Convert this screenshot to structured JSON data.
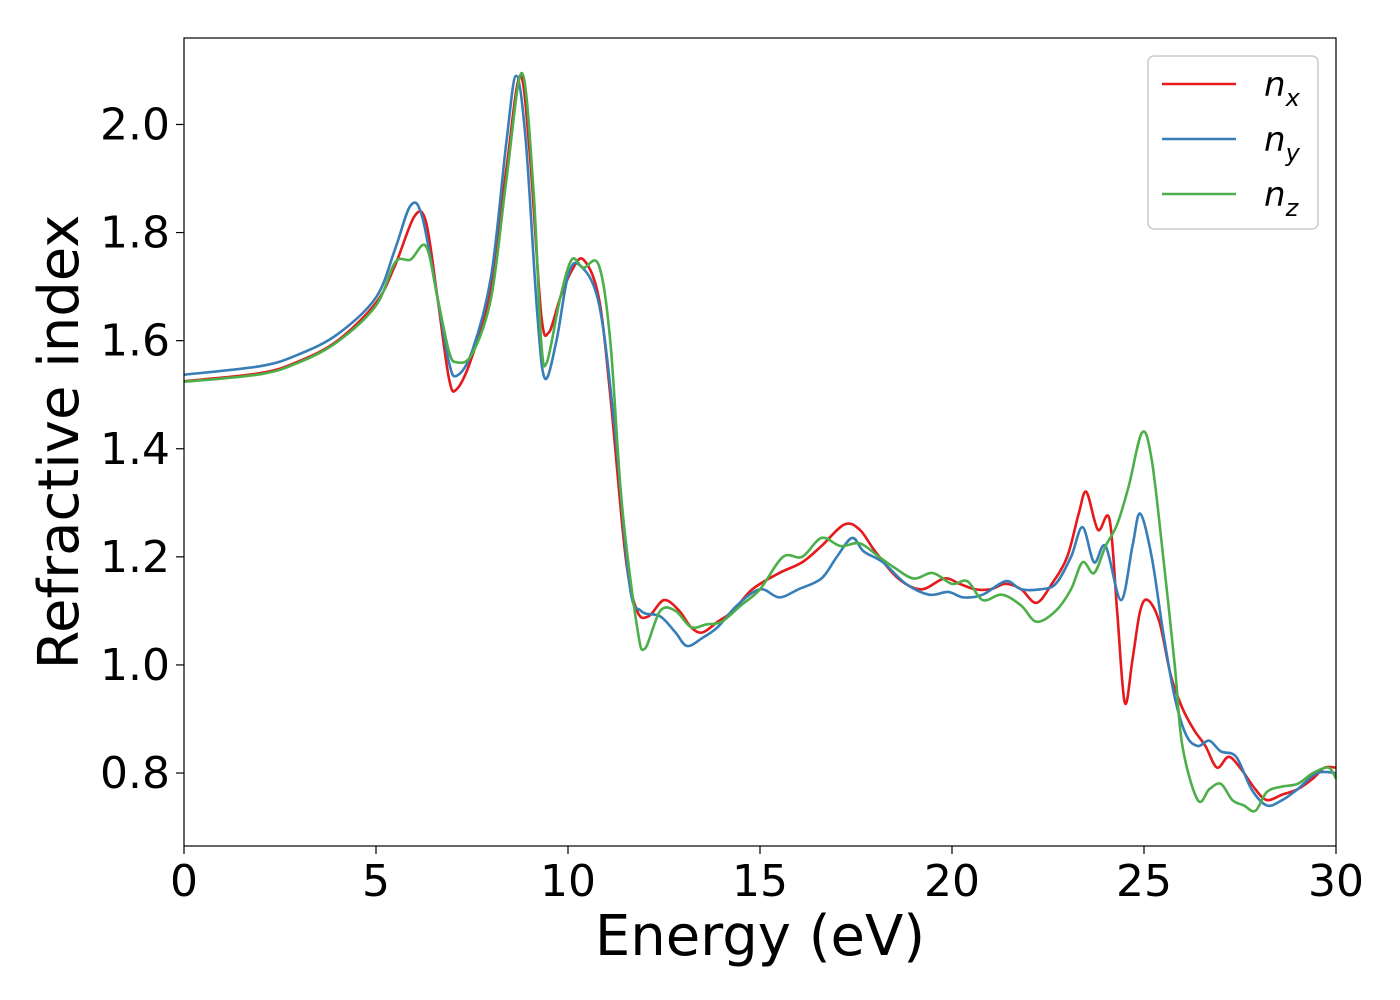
{
  "chart_data": {
    "type": "line",
    "xlabel": "Energy (eV)",
    "ylabel": "Refractive index",
    "xlim": [
      0,
      30
    ],
    "ylim": [
      0.665,
      2.16
    ],
    "xticks": [
      0,
      5,
      10,
      15,
      20,
      25,
      30
    ],
    "xtick_labels": [
      "0",
      "5",
      "10",
      "15",
      "20",
      "25",
      "30"
    ],
    "yticks": [
      0.8,
      1.0,
      1.2,
      1.4,
      1.6,
      1.8,
      2.0
    ],
    "ytick_labels": [
      "0.8",
      "1.0",
      "1.2",
      "1.4",
      "1.6",
      "1.8",
      "2.0"
    ],
    "grid": false,
    "legend_position": "top-right",
    "series": [
      {
        "name": "n_x",
        "label_base": "n",
        "label_sub": "x",
        "color": "#e41a1c",
        "points": [
          [
            0,
            1.525
          ],
          [
            2,
            1.54
          ],
          [
            3,
            1.562
          ],
          [
            4,
            1.6
          ],
          [
            5,
            1.67
          ],
          [
            5.5,
            1.74
          ],
          [
            6,
            1.83
          ],
          [
            6.3,
            1.82
          ],
          [
            6.6,
            1.68
          ],
          [
            6.9,
            1.53
          ],
          [
            7.1,
            1.51
          ],
          [
            7.5,
            1.57
          ],
          [
            8,
            1.7
          ],
          [
            8.4,
            1.92
          ],
          [
            8.75,
            2.09
          ],
          [
            9.0,
            1.95
          ],
          [
            9.3,
            1.65
          ],
          [
            9.5,
            1.615
          ],
          [
            9.8,
            1.68
          ],
          [
            10.1,
            1.73
          ],
          [
            10.4,
            1.75
          ],
          [
            10.8,
            1.68
          ],
          [
            11.1,
            1.5
          ],
          [
            11.5,
            1.2
          ],
          [
            11.8,
            1.1
          ],
          [
            12.1,
            1.09
          ],
          [
            12.5,
            1.12
          ],
          [
            12.9,
            1.1
          ],
          [
            13.2,
            1.07
          ],
          [
            13.5,
            1.06
          ],
          [
            13.9,
            1.08
          ],
          [
            14.3,
            1.1
          ],
          [
            14.8,
            1.14
          ],
          [
            15.5,
            1.17
          ],
          [
            16.1,
            1.19
          ],
          [
            16.6,
            1.22
          ],
          [
            17.2,
            1.26
          ],
          [
            17.6,
            1.25
          ],
          [
            18.0,
            1.21
          ],
          [
            18.6,
            1.16
          ],
          [
            19.2,
            1.14
          ],
          [
            19.8,
            1.16
          ],
          [
            20.2,
            1.15
          ],
          [
            20.6,
            1.14
          ],
          [
            21.0,
            1.14
          ],
          [
            21.4,
            1.15
          ],
          [
            21.8,
            1.14
          ],
          [
            22.2,
            1.115
          ],
          [
            22.6,
            1.15
          ],
          [
            23.0,
            1.2
          ],
          [
            23.3,
            1.28
          ],
          [
            23.5,
            1.32
          ],
          [
            23.8,
            1.25
          ],
          [
            24.1,
            1.27
          ],
          [
            24.3,
            1.1
          ],
          [
            24.5,
            0.93
          ],
          [
            24.7,
            1.01
          ],
          [
            24.9,
            1.1
          ],
          [
            25.1,
            1.12
          ],
          [
            25.4,
            1.08
          ],
          [
            25.7,
            0.98
          ],
          [
            26.0,
            0.92
          ],
          [
            26.3,
            0.88
          ],
          [
            26.6,
            0.85
          ],
          [
            26.9,
            0.81
          ],
          [
            27.2,
            0.83
          ],
          [
            27.5,
            0.81
          ],
          [
            27.9,
            0.77
          ],
          [
            28.2,
            0.75
          ],
          [
            28.6,
            0.76
          ],
          [
            29.0,
            0.77
          ],
          [
            29.4,
            0.79
          ],
          [
            29.7,
            0.81
          ],
          [
            30.0,
            0.81
          ]
        ]
      },
      {
        "name": "n_y",
        "label_base": "n",
        "label_sub": "y",
        "color": "#377eb8",
        "points": [
          [
            0,
            1.537
          ],
          [
            2,
            1.553
          ],
          [
            3,
            1.575
          ],
          [
            4,
            1.612
          ],
          [
            5,
            1.68
          ],
          [
            5.5,
            1.77
          ],
          [
            5.9,
            1.85
          ],
          [
            6.2,
            1.83
          ],
          [
            6.6,
            1.68
          ],
          [
            6.9,
            1.56
          ],
          [
            7.1,
            1.535
          ],
          [
            7.5,
            1.58
          ],
          [
            8,
            1.72
          ],
          [
            8.4,
            1.97
          ],
          [
            8.65,
            2.09
          ],
          [
            8.9,
            1.97
          ],
          [
            9.2,
            1.65
          ],
          [
            9.4,
            1.53
          ],
          [
            9.7,
            1.6
          ],
          [
            10.0,
            1.72
          ],
          [
            10.3,
            1.74
          ],
          [
            10.8,
            1.67
          ],
          [
            11.2,
            1.45
          ],
          [
            11.6,
            1.15
          ],
          [
            11.9,
            1.1
          ],
          [
            12.4,
            1.09
          ],
          [
            12.8,
            1.06
          ],
          [
            13.1,
            1.035
          ],
          [
            13.5,
            1.05
          ],
          [
            13.9,
            1.07
          ],
          [
            14.4,
            1.11
          ],
          [
            15.0,
            1.14
          ],
          [
            15.5,
            1.125
          ],
          [
            16.0,
            1.14
          ],
          [
            16.6,
            1.16
          ],
          [
            17.0,
            1.2
          ],
          [
            17.4,
            1.235
          ],
          [
            17.7,
            1.21
          ],
          [
            18.2,
            1.19
          ],
          [
            18.8,
            1.15
          ],
          [
            19.4,
            1.13
          ],
          [
            19.9,
            1.135
          ],
          [
            20.3,
            1.125
          ],
          [
            20.8,
            1.13
          ],
          [
            21.4,
            1.155
          ],
          [
            21.8,
            1.14
          ],
          [
            22.3,
            1.14
          ],
          [
            22.7,
            1.15
          ],
          [
            23.1,
            1.2
          ],
          [
            23.4,
            1.255
          ],
          [
            23.7,
            1.19
          ],
          [
            24.0,
            1.22
          ],
          [
            24.4,
            1.12
          ],
          [
            24.7,
            1.22
          ],
          [
            24.9,
            1.28
          ],
          [
            25.2,
            1.2
          ],
          [
            25.5,
            1.06
          ],
          [
            25.8,
            0.94
          ],
          [
            26.1,
            0.87
          ],
          [
            26.4,
            0.85
          ],
          [
            26.7,
            0.86
          ],
          [
            27.0,
            0.84
          ],
          [
            27.4,
            0.83
          ],
          [
            27.8,
            0.77
          ],
          [
            28.2,
            0.74
          ],
          [
            28.6,
            0.75
          ],
          [
            29.0,
            0.77
          ],
          [
            29.5,
            0.8
          ],
          [
            30.0,
            0.8
          ]
        ]
      },
      {
        "name": "n_z",
        "label_base": "n",
        "label_sub": "z",
        "color": "#4daf4a",
        "points": [
          [
            0,
            1.524
          ],
          [
            2,
            1.538
          ],
          [
            3,
            1.56
          ],
          [
            4,
            1.598
          ],
          [
            5,
            1.665
          ],
          [
            5.5,
            1.745
          ],
          [
            5.9,
            1.75
          ],
          [
            6.3,
            1.775
          ],
          [
            6.6,
            1.68
          ],
          [
            6.9,
            1.58
          ],
          [
            7.1,
            1.56
          ],
          [
            7.5,
            1.575
          ],
          [
            8,
            1.68
          ],
          [
            8.4,
            1.9
          ],
          [
            8.8,
            2.095
          ],
          [
            9.1,
            1.88
          ],
          [
            9.3,
            1.6
          ],
          [
            9.45,
            1.56
          ],
          [
            9.8,
            1.68
          ],
          [
            10.1,
            1.75
          ],
          [
            10.4,
            1.735
          ],
          [
            10.8,
            1.74
          ],
          [
            11.1,
            1.6
          ],
          [
            11.4,
            1.3
          ],
          [
            11.8,
            1.07
          ],
          [
            12.0,
            1.03
          ],
          [
            12.4,
            1.1
          ],
          [
            12.8,
            1.1
          ],
          [
            13.2,
            1.07
          ],
          [
            13.6,
            1.075
          ],
          [
            14.0,
            1.08
          ],
          [
            14.5,
            1.11
          ],
          [
            15.0,
            1.14
          ],
          [
            15.6,
            1.2
          ],
          [
            16.1,
            1.2
          ],
          [
            16.6,
            1.235
          ],
          [
            17.1,
            1.22
          ],
          [
            17.6,
            1.225
          ],
          [
            18.1,
            1.2
          ],
          [
            18.5,
            1.18
          ],
          [
            19.0,
            1.16
          ],
          [
            19.5,
            1.17
          ],
          [
            20.0,
            1.15
          ],
          [
            20.4,
            1.155
          ],
          [
            20.8,
            1.12
          ],
          [
            21.3,
            1.13
          ],
          [
            21.8,
            1.11
          ],
          [
            22.2,
            1.08
          ],
          [
            22.7,
            1.1
          ],
          [
            23.1,
            1.14
          ],
          [
            23.4,
            1.19
          ],
          [
            23.7,
            1.17
          ],
          [
            24.0,
            1.22
          ],
          [
            24.3,
            1.26
          ],
          [
            24.6,
            1.33
          ],
          [
            24.95,
            1.43
          ],
          [
            25.2,
            1.38
          ],
          [
            25.5,
            1.2
          ],
          [
            25.8,
            1.0
          ],
          [
            26.0,
            0.85
          ],
          [
            26.4,
            0.75
          ],
          [
            26.7,
            0.77
          ],
          [
            27.0,
            0.78
          ],
          [
            27.3,
            0.75
          ],
          [
            27.6,
            0.74
          ],
          [
            27.9,
            0.73
          ],
          [
            28.2,
            0.765
          ],
          [
            28.6,
            0.775
          ],
          [
            29.0,
            0.78
          ],
          [
            29.4,
            0.8
          ],
          [
            29.8,
            0.81
          ],
          [
            30.0,
            0.79
          ]
        ]
      }
    ]
  }
}
